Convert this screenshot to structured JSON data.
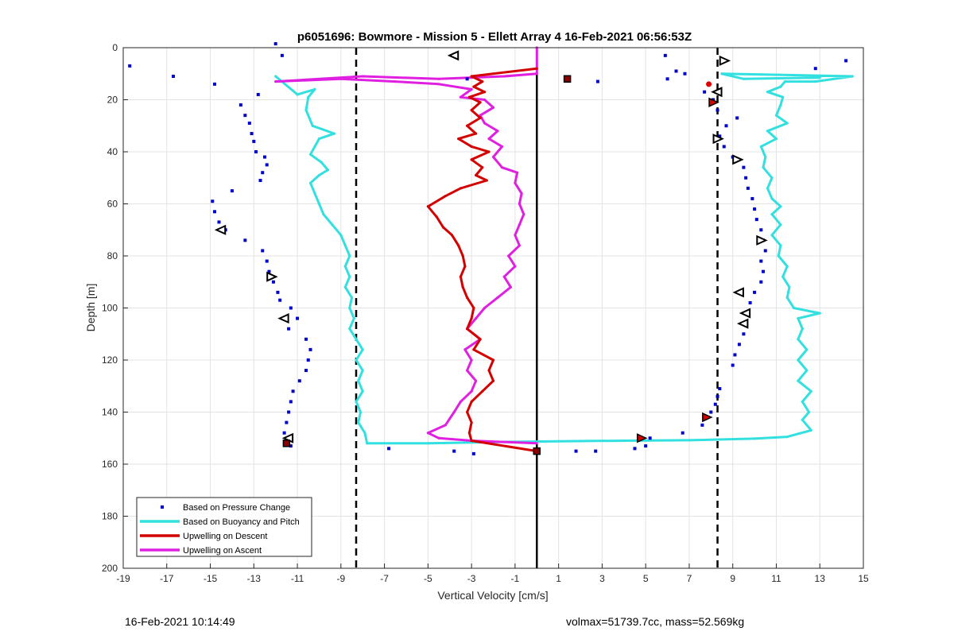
{
  "chart_data": {
    "type": "scatter",
    "title": "p6051696: Bowmore - Mission 5 - Ellett Array 4 16-Feb-2021 06:56:53Z",
    "xlabel": "Vertical Velocity [cm/s]",
    "ylabel": "Depth [m]",
    "xlim": [
      -19,
      15
    ],
    "ylim": [
      0,
      200
    ],
    "y_reversed": true,
    "xticks": [
      "-19",
      "-17",
      "-15",
      "-13",
      "-11",
      "-9",
      "-7",
      "-5",
      "-3",
      "-1",
      "1",
      "3",
      "5",
      "7",
      "9",
      "11",
      "13",
      "15"
    ],
    "yticks": [
      "0",
      "20",
      "40",
      "60",
      "80",
      "100",
      "120",
      "140",
      "160",
      "180",
      "200"
    ],
    "grid": true,
    "legend_position": "bottom-left",
    "colors": {
      "pressure": "#0000CD",
      "buoyancy": "#33E0E0",
      "descent": "#D40000",
      "ascent": "#E020E0",
      "reference": "#000000"
    },
    "vertical_lines": [
      {
        "x": -8.3,
        "style": "dashed"
      },
      {
        "x": 0,
        "style": "solid"
      },
      {
        "x": 8.3,
        "style": "dashed"
      }
    ],
    "series": [
      {
        "name": "Based on Pressure Change",
        "style": "dots",
        "points": [
          [
            -18.7,
            7
          ],
          [
            -16.7,
            11
          ],
          [
            -14.8,
            14
          ],
          [
            -11.7,
            3
          ],
          [
            -13.6,
            22
          ],
          [
            -13.4,
            26
          ],
          [
            -13.2,
            29
          ],
          [
            -13.1,
            33
          ],
          [
            -13.0,
            36
          ],
          [
            -12.9,
            40
          ],
          [
            -12.5,
            42
          ],
          [
            -12.4,
            45
          ],
          [
            -12.6,
            48
          ],
          [
            -12.7,
            51
          ],
          [
            -14.0,
            55
          ],
          [
            -14.9,
            59
          ],
          [
            -14.8,
            63
          ],
          [
            -14.6,
            67
          ],
          [
            -14.3,
            70
          ],
          [
            -13.4,
            74
          ],
          [
            -12.6,
            78
          ],
          [
            -12.4,
            82
          ],
          [
            -12.3,
            86
          ],
          [
            -12.1,
            90
          ],
          [
            -11.9,
            94
          ],
          [
            -11.8,
            97
          ],
          [
            -11.3,
            100
          ],
          [
            -11.0,
            104
          ],
          [
            -11.4,
            108
          ],
          [
            -10.6,
            112
          ],
          [
            -10.4,
            116
          ],
          [
            -10.5,
            120
          ],
          [
            -10.6,
            124
          ],
          [
            -10.9,
            128
          ],
          [
            -11.2,
            132
          ],
          [
            -11.3,
            136
          ],
          [
            -11.4,
            140
          ],
          [
            -11.5,
            144
          ],
          [
            -11.6,
            148
          ],
          [
            -11.3,
            153
          ],
          [
            -12.0,
            -1.5
          ],
          [
            -12.8,
            18
          ],
          [
            -6.8,
            154
          ],
          [
            -3.8,
            155
          ],
          [
            -2.9,
            156
          ],
          [
            -3.2,
            12
          ],
          [
            1.8,
            155
          ],
          [
            2.7,
            155
          ],
          [
            2.8,
            13
          ],
          [
            4.5,
            154
          ],
          [
            5.0,
            153
          ],
          [
            5.2,
            150
          ],
          [
            6.0,
            12
          ],
          [
            6.4,
            9
          ],
          [
            5.9,
            3
          ],
          [
            6.7,
            148
          ],
          [
            7.6,
            145
          ],
          [
            7.8,
            142
          ],
          [
            8.0,
            140
          ],
          [
            8.2,
            137
          ],
          [
            8.3,
            134
          ],
          [
            8.4,
            131
          ],
          [
            9.0,
            122
          ],
          [
            9.1,
            118
          ],
          [
            9.3,
            114
          ],
          [
            9.5,
            110
          ],
          [
            9.6,
            106
          ],
          [
            9.7,
            102
          ],
          [
            9.8,
            98
          ],
          [
            10.0,
            94
          ],
          [
            10.3,
            90
          ],
          [
            10.4,
            86
          ],
          [
            10.3,
            82
          ],
          [
            10.5,
            78
          ],
          [
            10.4,
            74
          ],
          [
            10.3,
            70
          ],
          [
            10.1,
            66
          ],
          [
            10.0,
            62
          ],
          [
            9.9,
            58
          ],
          [
            9.7,
            54
          ],
          [
            9.6,
            50
          ],
          [
            9.5,
            46
          ],
          [
            9.0,
            42
          ],
          [
            8.6,
            38
          ],
          [
            8.4,
            34
          ],
          [
            8.7,
            30
          ],
          [
            9.2,
            27
          ],
          [
            8.3,
            24
          ],
          [
            8.1,
            20
          ],
          [
            7.7,
            17
          ],
          [
            14.2,
            5
          ],
          [
            12.8,
            8
          ],
          [
            6.8,
            10
          ]
        ]
      },
      {
        "name": "Based on Buoyancy and Pitch",
        "style": "line",
        "points": [
          [
            -12.0,
            11
          ],
          [
            -11.0,
            18
          ],
          [
            -10.2,
            16
          ],
          [
            -10.5,
            19
          ],
          [
            -10.6,
            24
          ],
          [
            -10.3,
            30
          ],
          [
            -9.3,
            33
          ],
          [
            -10.0,
            35
          ],
          [
            -10.2,
            38
          ],
          [
            -10.4,
            41
          ],
          [
            -9.9,
            44
          ],
          [
            -9.6,
            47
          ],
          [
            -10.0,
            49
          ],
          [
            -10.4,
            52
          ],
          [
            -10.2,
            56
          ],
          [
            -10.0,
            60
          ],
          [
            -9.8,
            64
          ],
          [
            -9.4,
            68
          ],
          [
            -9.0,
            72
          ],
          [
            -8.8,
            76
          ],
          [
            -8.6,
            80
          ],
          [
            -8.8,
            84
          ],
          [
            -8.6,
            88
          ],
          [
            -8.8,
            92
          ],
          [
            -8.5,
            96
          ],
          [
            -8.6,
            100
          ],
          [
            -8.4,
            104
          ],
          [
            -8.6,
            108
          ],
          [
            -8.3,
            112
          ],
          [
            -8.0,
            116
          ],
          [
            -8.3,
            120
          ],
          [
            -8.0,
            124
          ],
          [
            -8.2,
            128
          ],
          [
            -8.0,
            132
          ],
          [
            -8.3,
            136
          ],
          [
            -8.1,
            140
          ],
          [
            -8.2,
            144
          ],
          [
            -7.9,
            148
          ],
          [
            -7.8,
            152
          ],
          [
            -5.0,
            152
          ],
          [
            -2.0,
            151.5
          ],
          [
            1.0,
            151.2
          ],
          [
            4.0,
            151
          ],
          [
            7.0,
            150.8
          ],
          [
            10.0,
            150.2
          ],
          [
            11.5,
            149.5
          ],
          [
            12.6,
            147
          ],
          [
            12.2,
            143
          ],
          [
            12.5,
            140
          ],
          [
            12.2,
            136
          ],
          [
            12.6,
            132
          ],
          [
            12.0,
            128
          ],
          [
            12.4,
            124
          ],
          [
            12.0,
            120
          ],
          [
            12.4,
            116
          ],
          [
            12.0,
            112
          ],
          [
            12.2,
            108
          ],
          [
            12.0,
            104
          ],
          [
            13.0,
            102
          ],
          [
            11.8,
            100
          ],
          [
            11.5,
            96
          ],
          [
            11.6,
            92
          ],
          [
            11.3,
            88
          ],
          [
            11.5,
            84
          ],
          [
            11.1,
            80
          ],
          [
            11.2,
            76
          ],
          [
            10.8,
            72
          ],
          [
            11.2,
            68
          ],
          [
            10.8,
            64
          ],
          [
            11.2,
            61
          ],
          [
            10.8,
            58
          ],
          [
            10.6,
            54
          ],
          [
            10.8,
            50
          ],
          [
            10.4,
            46
          ],
          [
            10.5,
            42
          ],
          [
            10.3,
            38
          ],
          [
            11.0,
            35
          ],
          [
            10.6,
            32
          ],
          [
            11.5,
            29
          ],
          [
            11.0,
            26
          ],
          [
            11.2,
            22
          ],
          [
            11.3,
            19
          ],
          [
            10.6,
            17
          ],
          [
            11.2,
            15
          ],
          [
            11.4,
            13
          ],
          [
            12.8,
            13
          ],
          [
            14.5,
            11
          ],
          [
            8.5,
            10
          ],
          [
            9.5,
            12
          ],
          [
            13.0,
            11.5
          ]
        ]
      },
      {
        "name": "Upwelling on Descent",
        "style": "line",
        "points": [
          [
            0.0,
            8
          ],
          [
            -3.0,
            11
          ],
          [
            -2.5,
            13
          ],
          [
            -2.9,
            15
          ],
          [
            -2.4,
            17
          ],
          [
            -3.1,
            19
          ],
          [
            -2.6,
            21
          ],
          [
            -3.0,
            24
          ],
          [
            -2.6,
            27
          ],
          [
            -3.2,
            30
          ],
          [
            -2.8,
            33
          ],
          [
            -3.6,
            35
          ],
          [
            -3.0,
            38
          ],
          [
            -2.2,
            40
          ],
          [
            -3.0,
            43
          ],
          [
            -2.5,
            46
          ],
          [
            -2.8,
            49
          ],
          [
            -2.3,
            51
          ],
          [
            -3.5,
            54
          ],
          [
            -4.2,
            57
          ],
          [
            -5.0,
            61
          ],
          [
            -4.6,
            65
          ],
          [
            -4.3,
            69
          ],
          [
            -3.9,
            72
          ],
          [
            -3.6,
            76
          ],
          [
            -3.4,
            80
          ],
          [
            -3.3,
            84
          ],
          [
            -3.5,
            88
          ],
          [
            -3.4,
            92
          ],
          [
            -3.2,
            96
          ],
          [
            -2.9,
            100
          ],
          [
            -3.0,
            104
          ],
          [
            -3.2,
            108
          ],
          [
            -2.6,
            112
          ],
          [
            -2.9,
            116
          ],
          [
            -2.0,
            120
          ],
          [
            -2.2,
            124
          ],
          [
            -2.0,
            128
          ],
          [
            -2.5,
            132
          ],
          [
            -3.0,
            136
          ],
          [
            -3.2,
            140
          ],
          [
            -3.0,
            144
          ],
          [
            -3.1,
            148
          ],
          [
            -3.0,
            151
          ],
          [
            0.0,
            155
          ]
        ]
      },
      {
        "name": "Upwelling on Ascent",
        "style": "line",
        "points": [
          [
            0.0,
            152
          ],
          [
            -3.0,
            151
          ],
          [
            -4.5,
            150
          ],
          [
            -5.0,
            148
          ],
          [
            -4.2,
            145
          ],
          [
            -3.8,
            140
          ],
          [
            -3.5,
            136
          ],
          [
            -3.0,
            132
          ],
          [
            -2.8,
            128
          ],
          [
            -3.2,
            124
          ],
          [
            -3.0,
            120
          ],
          [
            -3.3,
            116
          ],
          [
            -2.6,
            112
          ],
          [
            -3.2,
            108
          ],
          [
            -2.8,
            104
          ],
          [
            -2.4,
            100
          ],
          [
            -1.8,
            96
          ],
          [
            -1.2,
            92
          ],
          [
            -1.5,
            88
          ],
          [
            -1.0,
            84
          ],
          [
            -1.3,
            80
          ],
          [
            -0.8,
            76
          ],
          [
            -1.0,
            72
          ],
          [
            -0.8,
            68
          ],
          [
            -0.6,
            64
          ],
          [
            -0.8,
            60
          ],
          [
            -0.7,
            56
          ],
          [
            -1.0,
            52
          ],
          [
            -0.9,
            48
          ],
          [
            -1.6,
            46
          ],
          [
            -2.0,
            42
          ],
          [
            -1.6,
            38
          ],
          [
            -2.2,
            35
          ],
          [
            -1.8,
            32
          ],
          [
            -2.4,
            29
          ],
          [
            -2.6,
            26
          ],
          [
            -2.0,
            23
          ],
          [
            -2.4,
            20
          ],
          [
            -3.5,
            19
          ],
          [
            -3.0,
            16
          ],
          [
            -4.5,
            14
          ],
          [
            -6.5,
            13
          ],
          [
            -9.0,
            12
          ],
          [
            -12.0,
            13
          ],
          [
            -8.0,
            11
          ],
          [
            -4.5,
            12
          ],
          [
            -1.5,
            11
          ],
          [
            0.0,
            10
          ],
          [
            0.0,
            0
          ]
        ]
      }
    ],
    "markers": [
      {
        "x": -3.8,
        "y": 3,
        "type": "tri-left-open"
      },
      {
        "x": 8.6,
        "y": 5,
        "type": "tri-right-open"
      },
      {
        "x": 1.4,
        "y": 12,
        "type": "diamond-dark"
      },
      {
        "x": 8.3,
        "y": 17,
        "type": "tri-left-open"
      },
      {
        "x": 7.9,
        "y": 14,
        "type": "red-dot"
      },
      {
        "x": 8.1,
        "y": 21,
        "type": "tri-red"
      },
      {
        "x": 8.3,
        "y": 35,
        "type": "tri-right-open"
      },
      {
        "x": 9.2,
        "y": 43,
        "type": "tri-right-open"
      },
      {
        "x": -14.5,
        "y": 70,
        "type": "tri-left-open"
      },
      {
        "x": 10.3,
        "y": 74,
        "type": "tri-right-open"
      },
      {
        "x": -12.2,
        "y": 88,
        "type": "tri-right-open"
      },
      {
        "x": 9.3,
        "y": 94,
        "type": "tri-left-open"
      },
      {
        "x": -11.6,
        "y": 104,
        "type": "tri-left-open"
      },
      {
        "x": 9.6,
        "y": 102,
        "type": "tri-left-open"
      },
      {
        "x": 9.5,
        "y": 106,
        "type": "tri-left-open"
      },
      {
        "x": 7.8,
        "y": 142,
        "type": "tri-red"
      },
      {
        "x": -11.4,
        "y": 150,
        "type": "tri-left-open"
      },
      {
        "x": -11.5,
        "y": 152,
        "type": "diamond-dark"
      },
      {
        "x": 4.8,
        "y": 150,
        "type": "tri-red"
      },
      {
        "x": 0.0,
        "y": 155,
        "type": "diamond-dark"
      }
    ]
  },
  "footer": {
    "left": "16-Feb-2021 10:14:49",
    "right": "volmax=51739.7cc, mass=52.569kg"
  }
}
